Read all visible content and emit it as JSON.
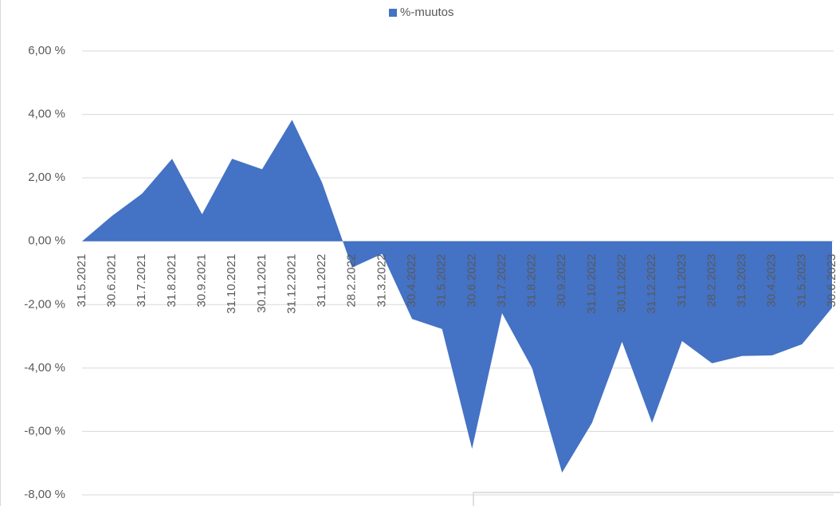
{
  "chart_data": {
    "type": "area",
    "categories": [
      "31.5.2021",
      "30.6.2021",
      "31.7.2021",
      "31.8.2021",
      "30.9.2021",
      "31.10.2021",
      "30.11.2021",
      "31.12.2021",
      "31.1.2022",
      "28.2.2022",
      "31.3.2022",
      "30.4.2022",
      "31.5.2022",
      "30.6.2022",
      "31.7.2022",
      "31.8.2022",
      "30.9.2022",
      "31.10.2022",
      "30.11.2022",
      "31.12.2022",
      "31.1.2023",
      "28.2.2023",
      "31.3.2023",
      "30.4.2023",
      "31.5.2023",
      "30.6.2023"
    ],
    "series": [
      {
        "name": "%-muutos",
        "color": "#4472c4",
        "values": [
          0,
          0.8,
          1.5,
          2.6,
          0.85,
          2.6,
          2.27,
          3.83,
          1.85,
          -0.83,
          -0.4,
          -2.45,
          -2.77,
          -6.55,
          -2.27,
          -4.0,
          -7.3,
          -5.73,
          -3.17,
          -5.73,
          -3.15,
          -3.85,
          -3.62,
          -3.6,
          -3.25,
          -2.1
        ]
      }
    ],
    "ylim": [
      -8,
      6
    ],
    "yticks": [
      {
        "value": -8,
        "label": "-8,00 %"
      },
      {
        "value": -6,
        "label": "-6,00 %"
      },
      {
        "value": -4,
        "label": "-4,00 %"
      },
      {
        "value": -2,
        "label": "-2,00 %"
      },
      {
        "value": 0,
        "label": "0,00 %"
      },
      {
        "value": 2,
        "label": "2,00 %"
      },
      {
        "value": 4,
        "label": "4,00 %"
      },
      {
        "value": 6,
        "label": "6,00 %"
      }
    ],
    "grid": true,
    "legend": "top"
  }
}
